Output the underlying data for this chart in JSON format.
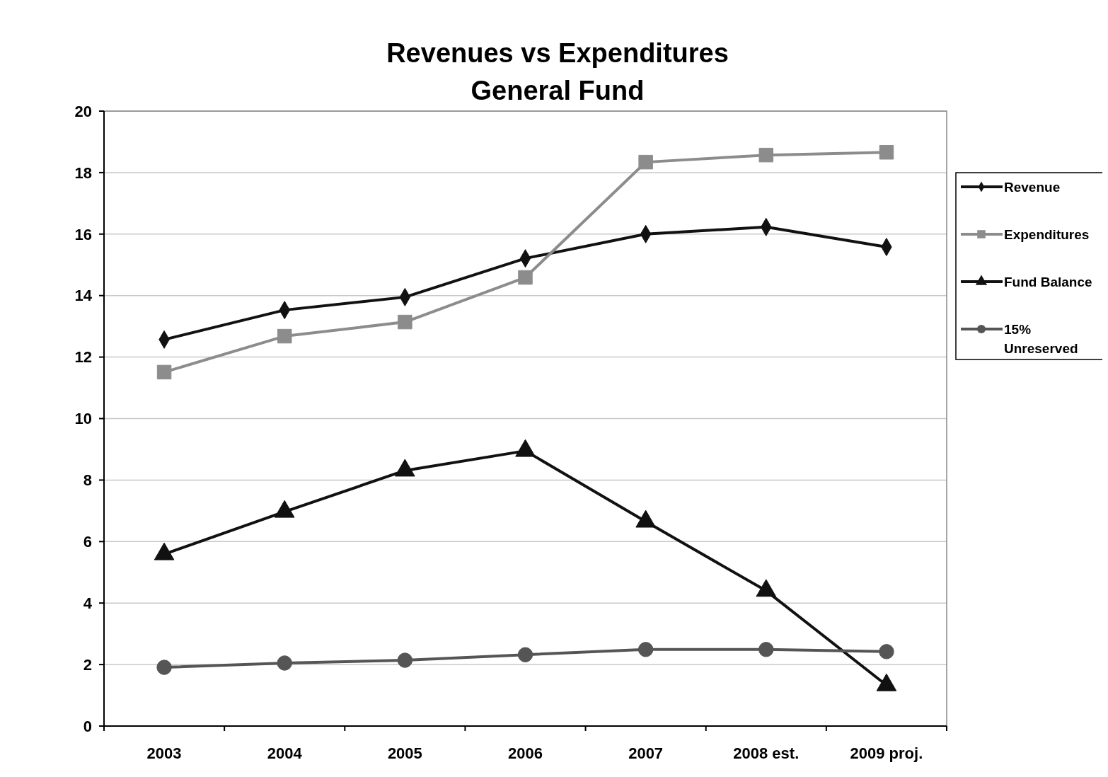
{
  "chart_data": {
    "type": "line",
    "title": "Revenues vs Expenditures\nGeneral Fund",
    "categories": [
      "2003",
      "2004",
      "2005",
      "2006",
      "2007",
      "2008 est.",
      "2009 proj."
    ],
    "series": [
      {
        "name": "Revenue",
        "color": "#111111",
        "marker": "diamond",
        "values": [
          12.57,
          13.53,
          13.95,
          15.21,
          16.0,
          16.23,
          15.58
        ]
      },
      {
        "name": "Expenditures",
        "color": "#8c8c8c",
        "marker": "square",
        "values": [
          11.51,
          12.68,
          13.14,
          14.59,
          18.34,
          18.57,
          18.66
        ]
      },
      {
        "name": "Fund Balance",
        "color": "#111111",
        "marker": "triangle",
        "values": [
          5.59,
          6.97,
          8.31,
          8.95,
          6.65,
          4.4,
          1.33
        ]
      },
      {
        "name": "15% Unreserved",
        "color": "#555555",
        "marker": "circle",
        "values": [
          1.91,
          2.05,
          2.14,
          2.32,
          2.49,
          2.49,
          2.42
        ]
      }
    ],
    "ylim": [
      0,
      20
    ],
    "yticks": [
      0,
      2,
      4,
      6,
      8,
      10,
      12,
      14,
      16,
      18,
      20
    ],
    "grid": "y",
    "legend": "right",
    "line_style": "solid"
  }
}
